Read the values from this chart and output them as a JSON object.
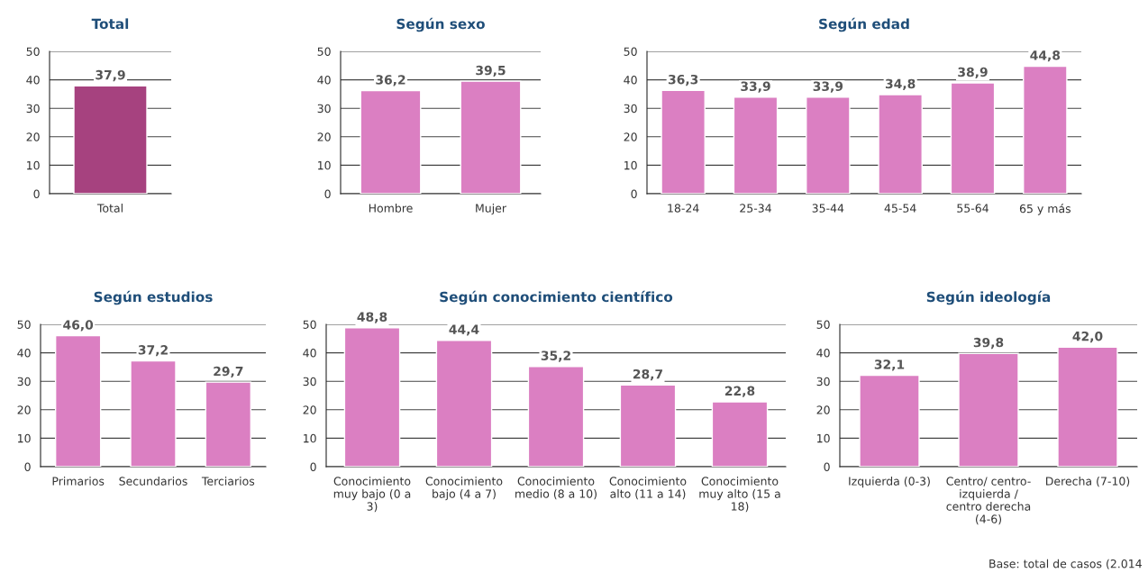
{
  "chart_data": [
    {
      "type": "bar",
      "title": "Total",
      "categories": [
        "Total"
      ],
      "values": [
        37.9
      ],
      "value_labels": [
        "37,9"
      ],
      "color": "#a6427f",
      "ylim": [
        0,
        50
      ],
      "yticks": [
        0,
        10,
        20,
        30,
        40,
        50
      ],
      "grid": "y",
      "legend": false
    },
    {
      "type": "bar",
      "title": "Según sexo",
      "categories": [
        "Hombre",
        "Mujer"
      ],
      "values": [
        36.2,
        39.5
      ],
      "value_labels": [
        "36,2",
        "39,5"
      ],
      "color": "#db7fc2",
      "ylim": [
        0,
        50
      ],
      "yticks": [
        0,
        10,
        20,
        30,
        40,
        50
      ],
      "grid": "y",
      "legend": false
    },
    {
      "type": "bar",
      "title": "Según edad",
      "categories": [
        "18-24",
        "25-34",
        "35-44",
        "45-54",
        "55-64",
        "65 y más"
      ],
      "values": [
        36.3,
        33.9,
        33.9,
        34.8,
        38.9,
        44.8
      ],
      "value_labels": [
        "36,3",
        "33,9",
        "33,9",
        "34,8",
        "38,9",
        "44,8"
      ],
      "color": "#db7fc2",
      "ylim": [
        0,
        50
      ],
      "yticks": [
        0,
        10,
        20,
        30,
        40,
        50
      ],
      "grid": "y",
      "legend": false
    },
    {
      "type": "bar",
      "title": "Según estudios",
      "categories": [
        "Primarios",
        "Secundarios",
        "Terciarios"
      ],
      "values": [
        46.0,
        37.2,
        29.7
      ],
      "value_labels": [
        "46,0",
        "37,2",
        "29,7"
      ],
      "color": "#db7fc2",
      "ylim": [
        0,
        50
      ],
      "yticks": [
        0,
        10,
        20,
        30,
        40,
        50
      ],
      "grid": "y",
      "legend": false
    },
    {
      "type": "bar",
      "title": "Según conocimiento científico",
      "categories": [
        "Conocimiento\nmuy bajo (0 a\n3)",
        "Conocimiento\nbajo (4 a 7)",
        "Conocimiento\nmedio (8 a 10)",
        "Conocimiento\nalto (11 a 14)",
        "Conocimiento\nmuy alto (15 a\n18)"
      ],
      "values": [
        48.8,
        44.4,
        35.2,
        28.7,
        22.8
      ],
      "value_labels": [
        "48,8",
        "44,4",
        "35,2",
        "28,7",
        "22,8"
      ],
      "color": "#db7fc2",
      "ylim": [
        0,
        50
      ],
      "yticks": [
        0,
        10,
        20,
        30,
        40,
        50
      ],
      "grid": "y",
      "legend": false
    },
    {
      "type": "bar",
      "title": "Según ideología",
      "categories": [
        "Izquierda (0-3)",
        "Centro/ centro-\nizquierda /\ncentro derecha\n(4-6)",
        "Derecha (7-10)"
      ],
      "values": [
        32.1,
        39.8,
        42.0
      ],
      "value_labels": [
        "32,1",
        "39,8",
        "42,0"
      ],
      "color": "#db7fc2",
      "ylim": [
        0,
        50
      ],
      "yticks": [
        0,
        10,
        20,
        30,
        40,
        50
      ],
      "grid": "y",
      "legend": false,
      "annotations": [
        "Base: total de casos (2.014"
      ]
    }
  ]
}
